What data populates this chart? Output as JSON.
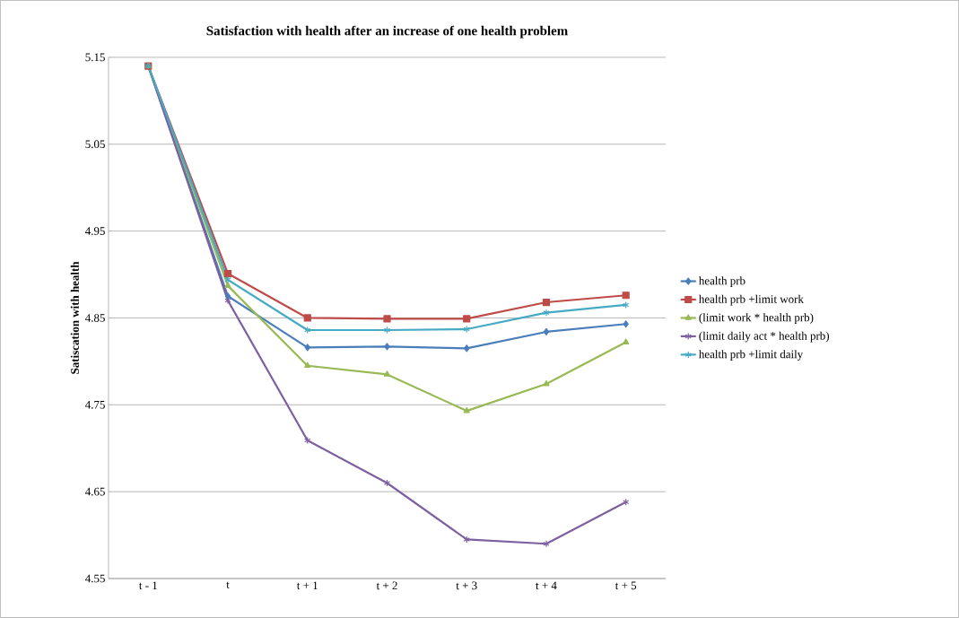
{
  "chart_data": {
    "type": "line",
    "title": "Satisfaction with health after an increase of one health problem",
    "ylabel": "Satiscation with health",
    "categories": [
      "t - 1",
      "t",
      "t + 1",
      "t + 2",
      "t + 3",
      "t + 4",
      "t + 5"
    ],
    "series": [
      {
        "name": "health prb",
        "color": "#4a7ebb",
        "marker": "diamond",
        "values": [
          5.14,
          4.875,
          4.816,
          4.817,
          4.815,
          4.834,
          4.843
        ]
      },
      {
        "name": "health prb +limit work",
        "color": "#be4b48",
        "marker": "square",
        "values": [
          5.14,
          4.901,
          4.85,
          4.849,
          4.849,
          4.868,
          4.876
        ]
      },
      {
        "name": "(limit work * health prb)",
        "color": "#98b954",
        "marker": "triangle",
        "values": [
          5.14,
          4.887,
          4.795,
          4.785,
          4.743,
          4.774,
          4.822
        ]
      },
      {
        "name": "(limit daily act * health prb)",
        "color": "#7d60a0",
        "marker": "cross",
        "values": [
          5.14,
          4.87,
          4.709,
          4.66,
          4.595,
          4.59,
          4.638
        ]
      },
      {
        "name": "health prb +limit daily",
        "color": "#46aac5",
        "marker": "cross",
        "values": [
          5.14,
          4.894,
          4.836,
          4.836,
          4.837,
          4.856,
          4.865
        ]
      }
    ],
    "ylim": [
      4.55,
      5.15
    ],
    "yticks": [
      4.55,
      4.65,
      4.75,
      4.85,
      4.95,
      5.05,
      5.15
    ],
    "grid": "y",
    "legend": "right",
    "line_style": "solid"
  }
}
